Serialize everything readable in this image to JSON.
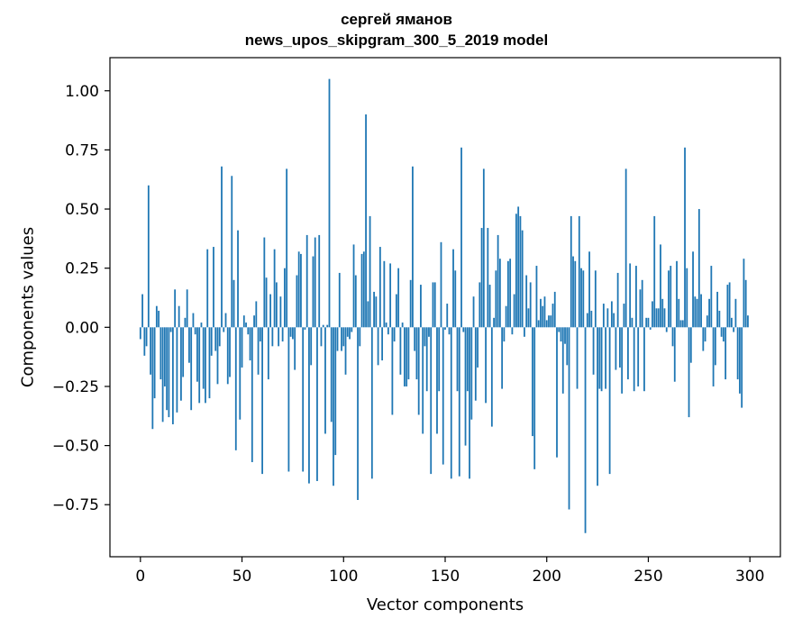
{
  "chart_data": {
    "type": "bar",
    "title": "сергей яманов",
    "subtitle": "news_upos_skipgram_300_5_2019 model",
    "xlabel": "Vector components",
    "ylabel": "Components values",
    "xlim": [
      -15,
      315
    ],
    "ylim": [
      -0.97,
      1.14
    ],
    "xticks": [
      0,
      50,
      100,
      150,
      200,
      250,
      300
    ],
    "yticks": [
      1.0,
      0.75,
      0.5,
      0.25,
      0.0,
      -0.25,
      -0.5,
      -0.75
    ],
    "ytick_labels": [
      "1.00",
      "0.75",
      "0.50",
      "0.25",
      "0.00",
      "−0.25",
      "−0.50",
      "−0.75"
    ],
    "grid": false,
    "color": "#1f77b4",
    "x": [
      0,
      1,
      2,
      3,
      4,
      5,
      6,
      7,
      8,
      9,
      10,
      11,
      12,
      13,
      14,
      15,
      16,
      17,
      18,
      19,
      20,
      21,
      22,
      23,
      24,
      25,
      26,
      27,
      28,
      29,
      30,
      31,
      32,
      33,
      34,
      35,
      36,
      37,
      38,
      39,
      40,
      41,
      42,
      43,
      44,
      45,
      46,
      47,
      48,
      49,
      50,
      51,
      52,
      53,
      54,
      55,
      56,
      57,
      58,
      59,
      60,
      61,
      62,
      63,
      64,
      65,
      66,
      67,
      68,
      69,
      70,
      71,
      72,
      73,
      74,
      75,
      76,
      77,
      78,
      79,
      80,
      81,
      82,
      83,
      84,
      85,
      86,
      87,
      88,
      89,
      90,
      91,
      92,
      93,
      94,
      95,
      96,
      97,
      98,
      99,
      100,
      101,
      102,
      103,
      104,
      105,
      106,
      107,
      108,
      109,
      110,
      111,
      112,
      113,
      114,
      115,
      116,
      117,
      118,
      119,
      120,
      121,
      122,
      123,
      124,
      125,
      126,
      127,
      128,
      129,
      130,
      131,
      132,
      133,
      134,
      135,
      136,
      137,
      138,
      139,
      140,
      141,
      142,
      143,
      144,
      145,
      146,
      147,
      148,
      149,
      150,
      151,
      152,
      153,
      154,
      155,
      156,
      157,
      158,
      159,
      160,
      161,
      162,
      163,
      164,
      165,
      166,
      167,
      168,
      169,
      170,
      171,
      172,
      173,
      174,
      175,
      176,
      177,
      178,
      179,
      180,
      181,
      182,
      183,
      184,
      185,
      186,
      187,
      188,
      189,
      190,
      191,
      192,
      193,
      194,
      195,
      196,
      197,
      198,
      199,
      200,
      201,
      202,
      203,
      204,
      205,
      206,
      207,
      208,
      209,
      210,
      211,
      212,
      213,
      214,
      215,
      216,
      217,
      218,
      219,
      220,
      221,
      222,
      223,
      224,
      225,
      226,
      227,
      228,
      229,
      230,
      231,
      232,
      233,
      234,
      235,
      236,
      237,
      238,
      239,
      240,
      241,
      242,
      243,
      244,
      245,
      246,
      247,
      248,
      249,
      250,
      251,
      252,
      253,
      254,
      255,
      256,
      257,
      258,
      259,
      260,
      261,
      262,
      263,
      264,
      265,
      266,
      267,
      268,
      269,
      270,
      271,
      272,
      273,
      274,
      275,
      276,
      277,
      278,
      279,
      280,
      281,
      282,
      283,
      284,
      285,
      286,
      287,
      288,
      289,
      290,
      291,
      292,
      293,
      294,
      295,
      296,
      297,
      298,
      299
    ],
    "values": [
      -0.05,
      0.14,
      -0.12,
      -0.08,
      0.6,
      -0.2,
      -0.43,
      -0.3,
      0.09,
      0.07,
      -0.22,
      -0.4,
      -0.25,
      -0.35,
      -0.38,
      -0.02,
      -0.41,
      0.16,
      -0.36,
      0.09,
      -0.31,
      -0.21,
      0.04,
      0.16,
      -0.15,
      -0.35,
      0.06,
      -0.03,
      -0.23,
      -0.32,
      0.02,
      -0.26,
      -0.32,
      0.33,
      -0.3,
      -0.12,
      0.34,
      -0.1,
      -0.24,
      -0.08,
      0.68,
      -0.02,
      0.06,
      -0.24,
      -0.21,
      0.64,
      0.2,
      -0.52,
      0.41,
      -0.39,
      -0.17,
      0.05,
      0.02,
      -0.03,
      -0.14,
      -0.57,
      0.05,
      0.11,
      -0.2,
      -0.06,
      -0.62,
      0.38,
      0.21,
      -0.22,
      0.14,
      -0.08,
      0.33,
      0.19,
      -0.08,
      0.13,
      -0.06,
      0.25,
      0.67,
      -0.61,
      -0.04,
      -0.05,
      -0.18,
      0.22,
      0.32,
      0.31,
      -0.61,
      -0.01,
      0.39,
      -0.66,
      -0.16,
      0.3,
      0.38,
      -0.65,
      0.39,
      -0.08,
      0.01,
      -0.45,
      0.01,
      1.05,
      -0.4,
      -0.67,
      -0.54,
      -0.1,
      0.23,
      -0.1,
      -0.08,
      -0.2,
      -0.04,
      -0.05,
      -0.02,
      0.35,
      0.22,
      -0.73,
      -0.08,
      0.31,
      0.32,
      0.9,
      0.11,
      0.47,
      -0.64,
      0.15,
      0.13,
      -0.16,
      0.34,
      -0.14,
      0.28,
      0.02,
      -0.03,
      0.27,
      -0.37,
      -0.06,
      0.14,
      0.25,
      -0.2,
      0.02,
      -0.25,
      -0.25,
      -0.22,
      0.2,
      0.68,
      -0.1,
      -0.22,
      -0.37,
      0.18,
      -0.45,
      -0.08,
      -0.27,
      -0.04,
      -0.62,
      0.19,
      0.19,
      -0.45,
      -0.27,
      0.36,
      -0.58,
      -0.01,
      0.1,
      -0.03,
      -0.64,
      0.33,
      0.24,
      -0.27,
      -0.63,
      0.76,
      -0.02,
      -0.5,
      -0.27,
      -0.64,
      -0.39,
      0.13,
      -0.31,
      -0.17,
      0.19,
      0.42,
      0.67,
      -0.32,
      0.42,
      0.18,
      -0.42,
      0.04,
      0.24,
      0.39,
      0.29,
      -0.26,
      -0.06,
      0.09,
      0.28,
      0.29,
      -0.03,
      0.14,
      0.48,
      0.51,
      0.47,
      0.41,
      -0.04,
      0.22,
      0.08,
      0.19,
      -0.46,
      -0.6,
      0.26,
      0.03,
      0.12,
      0.09,
      0.13,
      0.03,
      0.05,
      0.05,
      0.1,
      0.15,
      -0.55,
      -0.02,
      -0.06,
      -0.28,
      -0.07,
      -0.16,
      -0.77,
      0.47,
      0.3,
      0.28,
      -0.26,
      0.47,
      0.25,
      0.24,
      -0.87,
      0.06,
      0.32,
      0.07,
      -0.2,
      0.24,
      -0.67,
      -0.26,
      -0.27,
      0.1,
      -0.26,
      0.08,
      -0.62,
      0.11,
      0.06,
      -0.18,
      0.23,
      -0.17,
      -0.28,
      0.1,
      0.67,
      -0.22,
      0.27,
      0.04,
      -0.27,
      0.26,
      -0.25,
      0.16,
      0.2,
      -0.27,
      0.04,
      0.04,
      -0.01,
      0.11,
      0.47,
      0.08,
      0.08,
      0.35,
      0.12,
      0.08,
      -0.02,
      0.24,
      0.26,
      -0.08,
      -0.23,
      0.28,
      0.12,
      0.03,
      0.03,
      0.76,
      0.25,
      -0.38,
      -0.15,
      0.32,
      0.13,
      0.12,
      0.5,
      0.14,
      -0.1,
      -0.06,
      0.05,
      0.12,
      0.26,
      -0.25,
      -0.16,
      0.15,
      0.07,
      -0.04,
      -0.06,
      -0.22,
      0.18,
      0.19,
      0.04,
      -0.02,
      0.12,
      -0.22,
      -0.28,
      -0.34,
      0.29,
      0.2,
      0.05
    ]
  }
}
